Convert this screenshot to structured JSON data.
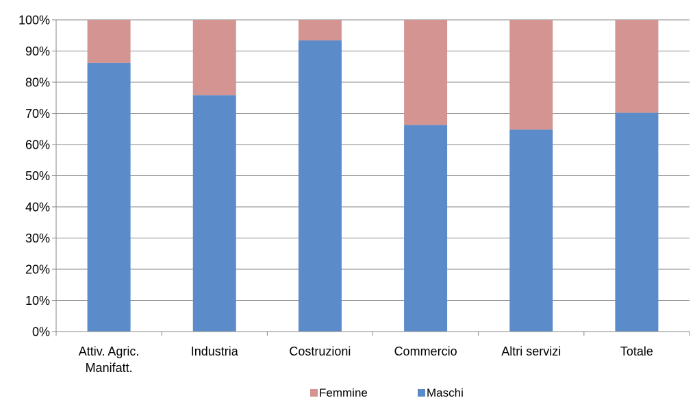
{
  "chart_data": {
    "type": "bar",
    "stacked": true,
    "categories": [
      "Attiv. Agric.\nManifatt.",
      "Industria",
      "Costruzioni",
      "Commercio",
      "Altri servizi",
      "Totale"
    ],
    "series": [
      {
        "name": "Maschi",
        "values": [
          86.2,
          75.8,
          93.4,
          66.3,
          64.8,
          70.2
        ],
        "color": "#5b8bc9"
      },
      {
        "name": "Femmine",
        "values": [
          13.8,
          24.2,
          6.6,
          33.7,
          35.2,
          29.8
        ],
        "color": "#d49592"
      }
    ],
    "ylim": [
      0,
      100
    ],
    "yticks": [
      "0%",
      "10%",
      "20%",
      "30%",
      "40%",
      "50%",
      "60%",
      "70%",
      "80%",
      "90%",
      "100%"
    ],
    "grid": true,
    "legend_position": "bottom",
    "legend_order": [
      "Femmine",
      "Maschi"
    ],
    "colors": {
      "grid": "#868686",
      "axis": "#868686"
    }
  }
}
